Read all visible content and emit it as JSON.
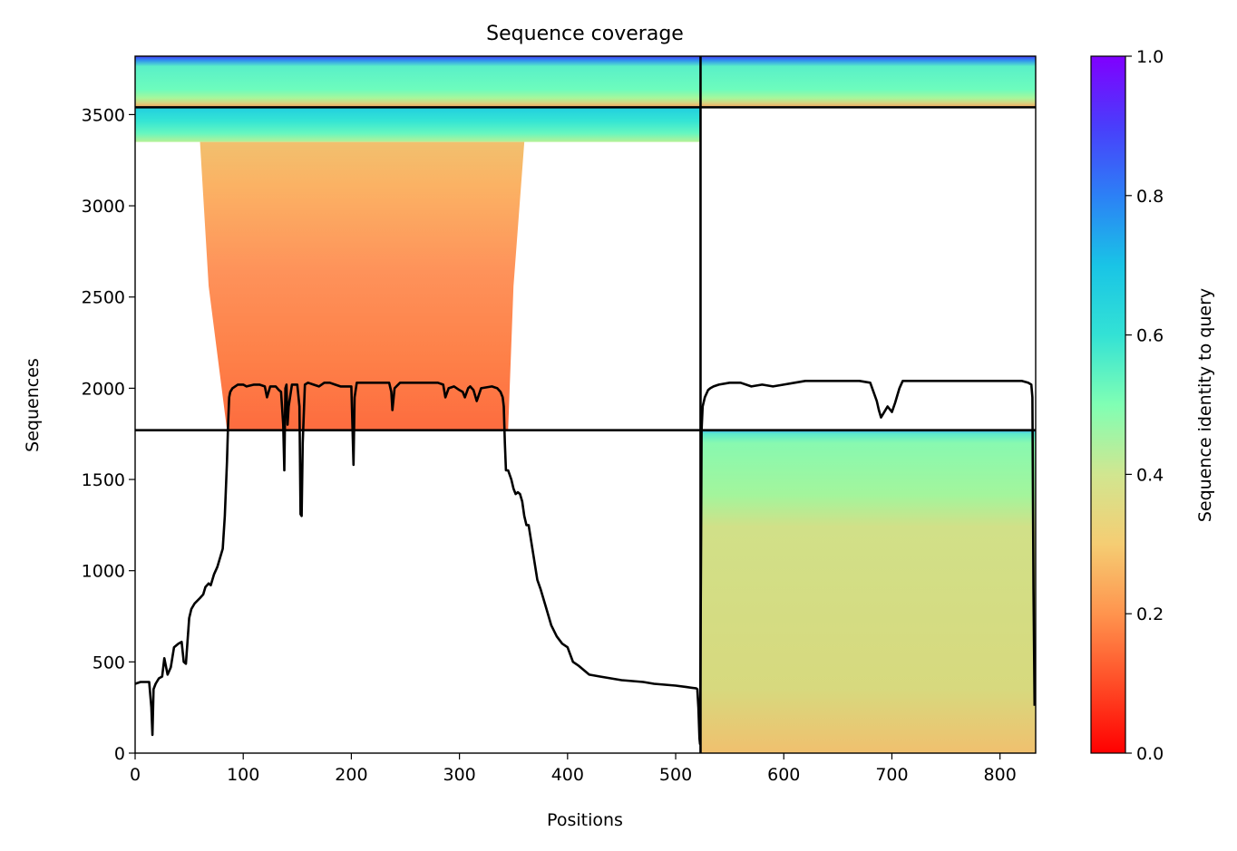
{
  "chart_data": {
    "type": "heatmap",
    "title": "Sequence coverage",
    "xlabel": "Positions",
    "ylabel": "Sequences",
    "colorbar_label": "Sequence identity to query",
    "colormap": "rainbow_r",
    "xlim": [
      0,
      833
    ],
    "ylim": [
      0,
      3820
    ],
    "clim": [
      0,
      1
    ],
    "x_ticks": [
      0,
      100,
      200,
      300,
      400,
      500,
      600,
      700,
      800
    ],
    "y_ticks": [
      0,
      500,
      1000,
      1500,
      2000,
      2500,
      3000,
      3500
    ],
    "colorbar_ticks": [
      0.0,
      0.2,
      0.4,
      0.6,
      0.8,
      1.0
    ],
    "colorbar_tick_labels": [
      "0.0",
      "0.2",
      "0.4",
      "0.6",
      "0.8",
      "1.0"
    ],
    "grid": false,
    "segment_boundaries": {
      "x": [
        523
      ],
      "y": [
        1770,
        3540
      ]
    },
    "blocks": [
      {
        "name": "both-segments",
        "y_range": [
          3540,
          3820
        ],
        "x_range": [
          0,
          833
        ],
        "identity": [
          0.9,
          0.25
        ],
        "coverage": "full"
      },
      {
        "name": "segment-1-high-identity",
        "y_range": [
          3350,
          3540
        ],
        "x_range": [
          0,
          523
        ],
        "identity": [
          0.65,
          0.4
        ],
        "coverage": "full"
      },
      {
        "name": "segment-1-only",
        "y_range": [
          1770,
          3350
        ],
        "x_envelope_top": [
          60,
          360
        ],
        "x_envelope_bottom": [
          85,
          345
        ],
        "identity": [
          0.32,
          0.2
        ]
      },
      {
        "name": "segment-2-only",
        "y_range": [
          0,
          1770
        ],
        "x_range": [
          523,
          833
        ],
        "identity": [
          0.85,
          0.3
        ],
        "coverage": "full"
      }
    ],
    "series": [
      {
        "type": "line",
        "color": "#000000",
        "x": [
          0,
          5,
          10,
          13,
          15,
          16,
          17,
          19,
          22,
          25,
          27,
          30,
          33,
          36,
          40,
          43,
          45,
          47,
          50,
          52,
          55,
          60,
          63,
          65,
          68,
          70,
          73,
          76,
          79,
          81,
          83,
          85,
          86,
          87,
          88,
          90,
          95,
          100,
          103,
          110,
          115,
          120,
          122,
          125,
          130,
          133,
          135,
          137,
          138,
          139,
          140,
          141,
          142,
          145,
          150,
          152,
          153,
          154,
          155,
          157,
          160,
          165,
          170,
          175,
          180,
          185,
          190,
          195,
          200,
          201,
          202,
          203,
          205,
          210,
          220,
          230,
          235,
          237,
          238,
          240,
          245,
          250,
          260,
          270,
          280,
          285,
          287,
          290,
          295,
          300,
          303,
          305,
          308,
          310,
          313,
          316,
          320,
          330,
          335,
          338,
          340,
          341,
          342,
          343,
          345,
          348,
          350,
          352,
          354,
          356,
          358,
          360,
          362,
          364,
          368,
          372,
          375,
          380,
          385,
          390,
          395,
          400,
          405,
          410,
          420,
          430,
          440,
          450,
          460,
          470,
          480,
          490,
          500,
          510,
          519,
          520,
          521,
          522,
          522.5,
          523.5,
          524,
          525,
          527,
          530,
          532,
          535,
          540,
          550,
          560,
          570,
          580,
          590,
          600,
          610,
          620,
          630,
          640,
          650,
          660,
          670,
          680,
          683,
          686,
          688,
          690,
          693,
          696,
          700,
          703,
          705,
          707,
          710,
          720,
          740,
          760,
          780,
          800,
          820,
          826,
          829,
          830,
          831,
          832
        ],
        "y": [
          380,
          390,
          390,
          390,
          250,
          100,
          350,
          380,
          410,
          420,
          520,
          430,
          470,
          580,
          600,
          610,
          500,
          490,
          740,
          790,
          820,
          850,
          870,
          910,
          930,
          920,
          980,
          1020,
          1080,
          1120,
          1300,
          1600,
          1800,
          1950,
          1980,
          2000,
          2020,
          2020,
          2010,
          2020,
          2020,
          2010,
          1950,
          2010,
          2010,
          1990,
          1980,
          1800,
          1550,
          2000,
          2020,
          1800,
          1900,
          2020,
          2020,
          1900,
          1310,
          1300,
          1700,
          2020,
          2030,
          2020,
          2010,
          2030,
          2030,
          2020,
          2010,
          2010,
          2010,
          1800,
          1580,
          1950,
          2030,
          2030,
          2030,
          2030,
          2030,
          1980,
          1880,
          2000,
          2030,
          2030,
          2030,
          2030,
          2030,
          2020,
          1950,
          2000,
          2010,
          1990,
          1980,
          1950,
          2000,
          2010,
          1990,
          1930,
          2000,
          2010,
          2000,
          1980,
          1950,
          1900,
          1700,
          1550,
          1550,
          1500,
          1450,
          1420,
          1430,
          1420,
          1380,
          1300,
          1250,
          1250,
          1100,
          950,
          900,
          800,
          700,
          640,
          600,
          580,
          500,
          480,
          430,
          420,
          410,
          400,
          395,
          390,
          380,
          375,
          370,
          362,
          355,
          350,
          250,
          80,
          50,
          1200,
          1770,
          1900,
          1950,
          1990,
          2000,
          2010,
          2020,
          2030,
          2030,
          2010,
          2020,
          2010,
          2020,
          2030,
          2040,
          2040,
          2040,
          2040,
          2040,
          2040,
          2030,
          1980,
          1930,
          1880,
          1840,
          1870,
          1900,
          1870,
          1920,
          1960,
          2000,
          2040,
          2040,
          2040,
          2040,
          2040,
          2040,
          2040,
          2030,
          2020,
          1950,
          900,
          260
        ]
      }
    ]
  }
}
